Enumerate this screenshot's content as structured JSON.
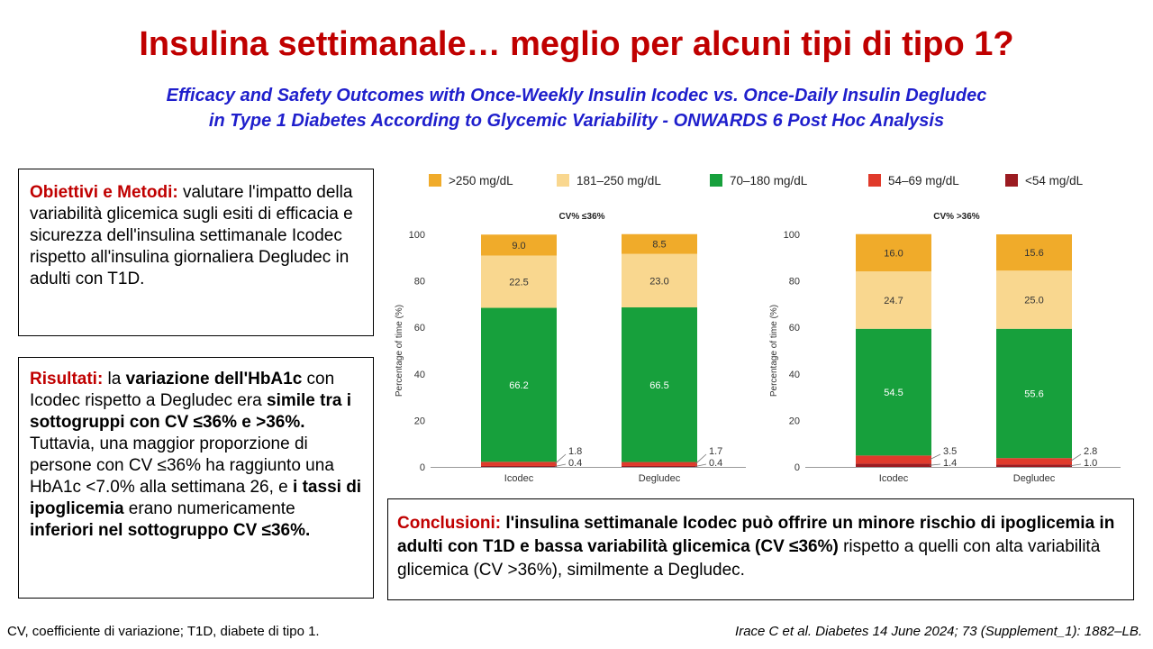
{
  "title": "Insulina settimanale… meglio per alcuni tipi di tipo 1?",
  "subtitle": {
    "line1": "Efficacy and Safety Outcomes with Once-Weekly Insulin Icodec vs. Once-Daily Insulin Degludec",
    "line2": "in Type 1 Diabetes According to Glycemic Variability - ONWARDS 6 Post Hoc Analysis"
  },
  "objectives": {
    "label": "Obiettivi e Metodi:",
    "text": " valutare l'impatto della variabilità glicemica sugli esiti di efficacia e sicurezza dell'insulina  settimanale Icodec rispetto all'insulina  giornaliera Degludec in adulti con T1D."
  },
  "results": {
    "label": "Risultati:",
    "t1": " la ",
    "b1": "variazione dell'HbA1c",
    "t2": " con Icodec rispetto a Degludec era ",
    "b2": "simile tra i sottogruppi con CV ≤36% e >36%.",
    "t3": " Tuttavia, una maggior proporzione di persone con CV ≤36% ha raggiunto una HbA1c <7.0% alla settimana 26, e ",
    "b3": "i tassi di ipoglicemia",
    "t4": " erano numericamente ",
    "b4": "inferiori nel sottogruppo CV ≤36%."
  },
  "conclusions": {
    "label": "Conclusioni:",
    "b1": " l'insulina settimanale Icodec può offrire un minore rischio di ipoglicemia in adulti con T1D e bassa variabilità glicemica (CV ≤36%)",
    "t1": " rispetto a quelli con alta variabilità glicemica (CV >36%), similmente a Degludec."
  },
  "footer": {
    "left": "CV, coefficiente di variazione; T1D, diabete di tipo 1.",
    "right": "Irace C et al. Diabetes 14 June 2024; 73 (Supplement_1): 1882–LB."
  },
  "chart_data": {
    "type": "bar",
    "stacked": true,
    "legend_position": "top",
    "ylabel": "Percentage of time (%)",
    "ylim": [
      0,
      100
    ],
    "yticks": [
      0,
      20,
      40,
      60,
      80,
      100
    ],
    "categories": [
      "Icodec",
      "Degludec"
    ],
    "series_legend": [
      {
        "name": ">250 mg/dL",
        "color": "#f0ab2a"
      },
      {
        "name": "181–250 mg/dL",
        "color": "#f9d78f"
      },
      {
        "name": "70–180 mg/dL",
        "color": "#17a03c"
      },
      {
        "name": "54–69 mg/dL",
        "color": "#e03a2b"
      },
      {
        "name": "<54 mg/dL",
        "color": "#9b1b21"
      }
    ],
    "panels": [
      {
        "title": "CV% ≤36%",
        "series": [
          {
            "name": "<54 mg/dL",
            "values": [
              0.4,
              0.4
            ]
          },
          {
            "name": "54–69 mg/dL",
            "values": [
              1.8,
              1.7
            ]
          },
          {
            "name": "70–180 mg/dL",
            "values": [
              66.2,
              66.5
            ]
          },
          {
            "name": "181–250 mg/dL",
            "values": [
              22.5,
              23.0
            ]
          },
          {
            "name": ">250 mg/dL",
            "values": [
              9.0,
              8.5
            ]
          }
        ]
      },
      {
        "title": "CV% >36%",
        "series": [
          {
            "name": "<54 mg/dL",
            "values": [
              1.4,
              1.0
            ]
          },
          {
            "name": "54–69 mg/dL",
            "values": [
              3.5,
              2.8
            ]
          },
          {
            "name": "70–180 mg/dL",
            "values": [
              54.5,
              55.6
            ]
          },
          {
            "name": "181–250 mg/dL",
            "values": [
              24.7,
              25.0
            ]
          },
          {
            "name": ">250 mg/dL",
            "values": [
              16.0,
              15.6
            ]
          }
        ]
      }
    ]
  }
}
